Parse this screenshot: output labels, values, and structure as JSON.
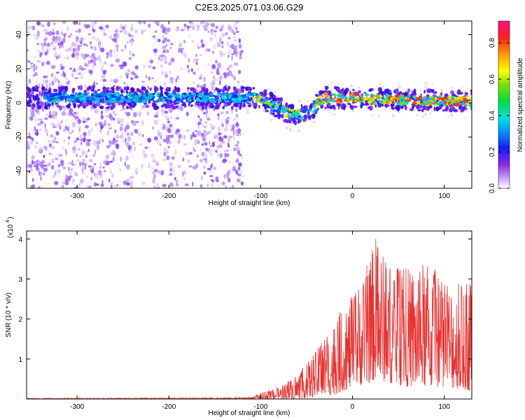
{
  "title": "C2E3.2025.071.03.06.G29",
  "chart_data": [
    {
      "type": "heatmap",
      "xlabel": "Height of straight line (km)",
      "ylabel": "Frequency (Hz)",
      "xlim": [
        -355,
        130
      ],
      "ylim": [
        -50,
        48
      ],
      "xticks": [
        -300,
        -200,
        -100,
        0,
        100
      ],
      "xtick_labels": [
        "-300",
        "-200",
        "-100",
        "0",
        "100"
      ],
      "yticks": [
        -40,
        -20,
        0,
        20,
        40
      ],
      "ytick_labels": [
        "-40",
        "-20",
        "0",
        "20",
        "40"
      ],
      "colorbar": {
        "label": "Normalized spectral amplitude",
        "range": [
          0,
          0.92
        ],
        "ticks": [
          0.0,
          0.2,
          0.4,
          0.6,
          0.8
        ],
        "tick_labels": [
          "0.0",
          "0.2",
          "0.4",
          "0.6",
          "0.8"
        ]
      },
      "band_center": [
        {
          "x": -355,
          "f": 3
        },
        {
          "x": -280,
          "f": 3
        },
        {
          "x": -200,
          "f": 3
        },
        {
          "x": -130,
          "f": 3
        },
        {
          "x": -105,
          "f": 3
        },
        {
          "x": -90,
          "f": 0
        },
        {
          "x": -80,
          "f": -3
        },
        {
          "x": -70,
          "f": -6
        },
        {
          "x": -55,
          "f": -7
        },
        {
          "x": -45,
          "f": -5
        },
        {
          "x": -38,
          "f": 0
        },
        {
          "x": -30,
          "f": 3
        },
        {
          "x": 0,
          "f": 3
        },
        {
          "x": 40,
          "f": 2
        },
        {
          "x": 130,
          "f": 1
        }
      ]
    },
    {
      "type": "line",
      "xlabel": "Height of straight line (km)",
      "ylabel": "SNR (10 * v/v)",
      "multiplier_label": "(x10",
      "multiplier_exp": "4",
      "xlim": [
        -355,
        130
      ],
      "ylim": [
        0,
        4.2
      ],
      "xticks": [
        -300,
        -200,
        -100,
        0,
        100
      ],
      "xtick_labels": [
        "-300",
        "-200",
        "-100",
        "0",
        "100"
      ],
      "yticks": [
        1,
        2,
        3,
        4
      ],
      "ytick_labels": [
        "1",
        "2",
        "3",
        "4"
      ],
      "color": "#e8312f",
      "envelope": [
        {
          "x": -355,
          "lo": 0.0,
          "hi": 0.02
        },
        {
          "x": -150,
          "lo": 0.0,
          "hi": 0.03
        },
        {
          "x": -110,
          "lo": 0.0,
          "hi": 0.05
        },
        {
          "x": -100,
          "lo": 0.0,
          "hi": 0.15
        },
        {
          "x": -80,
          "lo": 0.0,
          "hi": 0.3
        },
        {
          "x": -60,
          "lo": 0.0,
          "hi": 0.6
        },
        {
          "x": -40,
          "lo": 0.05,
          "hi": 1.2
        },
        {
          "x": -20,
          "lo": 0.1,
          "hi": 2.0
        },
        {
          "x": 0,
          "lo": 0.3,
          "hi": 2.6
        },
        {
          "x": 20,
          "lo": 0.4,
          "hi": 3.6
        },
        {
          "x": 25,
          "lo": 0.5,
          "hi": 4.15
        },
        {
          "x": 40,
          "lo": 0.4,
          "hi": 3.3
        },
        {
          "x": 60,
          "lo": 0.3,
          "hi": 3.3
        },
        {
          "x": 80,
          "lo": 0.3,
          "hi": 3.5
        },
        {
          "x": 100,
          "lo": 0.3,
          "hi": 3.0
        },
        {
          "x": 130,
          "lo": 0.2,
          "hi": 2.9
        }
      ]
    }
  ]
}
